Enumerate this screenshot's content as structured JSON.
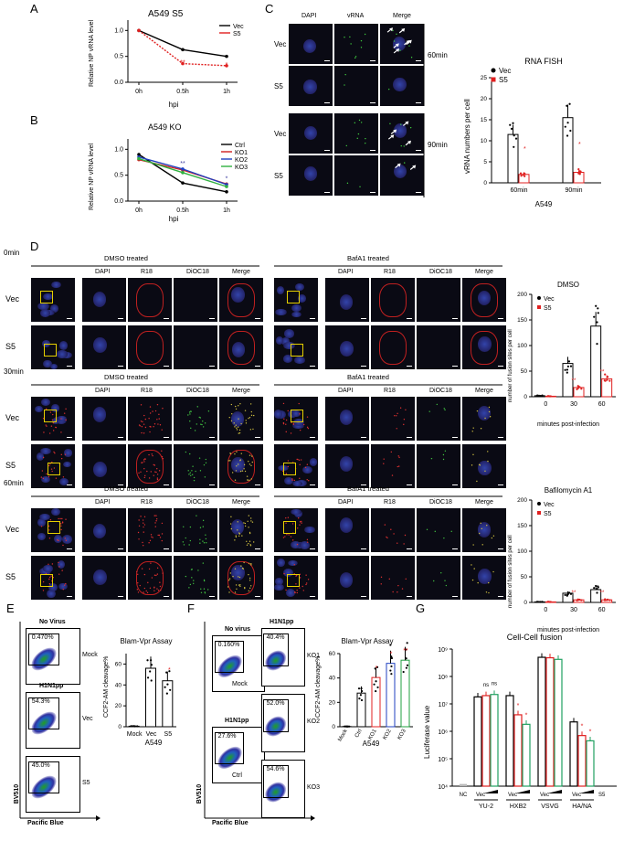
{
  "panels": {
    "A": "A",
    "B": "B",
    "C": "C",
    "D": "D",
    "E": "E",
    "F": "F",
    "G": "G"
  },
  "panelA": {
    "title": "A549 S5",
    "ylabel": "Relative NP vRNA level",
    "xlabel": "hpi",
    "xticks": [
      "0h",
      "0.5h",
      "1h"
    ],
    "yticks": [
      "0.0",
      "0.5",
      "1.0"
    ],
    "legend": [
      "Vec",
      "S5"
    ],
    "series": [
      {
        "name": "Vec",
        "values": [
          1.0,
          0.63,
          0.5
        ],
        "color": "#000000"
      },
      {
        "name": "S5",
        "values": [
          1.0,
          0.36,
          0.32
        ],
        "color": "#e02020"
      }
    ],
    "sig": [
      "**",
      "*"
    ]
  },
  "panelB": {
    "title": "A549 KO",
    "ylabel": "Relative NP vRNA level",
    "xlabel": "hpi",
    "xticks": [
      "0h",
      "0.5h",
      "1h"
    ],
    "yticks": [
      "0.0",
      "0.5",
      "1.0"
    ],
    "legend": [
      "Ctrl",
      "KO1",
      "KO2",
      "KO3"
    ],
    "series": [
      {
        "name": "Ctrl",
        "values": [
          0.9,
          0.35,
          0.18
        ],
        "color": "#000000"
      },
      {
        "name": "KO1",
        "values": [
          0.8,
          0.6,
          0.33
        ],
        "color": "#d02020"
      },
      {
        "name": "KO2",
        "values": [
          0.85,
          0.62,
          0.32
        ],
        "color": "#2040c0"
      },
      {
        "name": "KO3",
        "values": [
          0.82,
          0.55,
          0.28
        ],
        "color": "#30b040"
      }
    ],
    "sig": [
      "**",
      "*"
    ]
  },
  "panelC": {
    "cols": [
      "DAPI",
      "vRNA",
      "Merge"
    ],
    "rows": [
      "Vec",
      "S5",
      "Vec",
      "S5"
    ],
    "times": [
      "60min",
      "90min"
    ],
    "chart_title": "RNA FISH",
    "ylabel": "vRNA numbers per cell",
    "xlabel": "A549",
    "xticks": [
      "60min",
      "90min"
    ],
    "yticks": [
      "0",
      "5",
      "10",
      "15",
      "20",
      "25"
    ],
    "legend": [
      "Vec",
      "S5"
    ],
    "sig": [
      "*",
      "*"
    ]
  },
  "panelD": {
    "times": [
      "0min",
      "30min",
      "60min"
    ],
    "groups": [
      "DMSO treated",
      "BafA1 treated"
    ],
    "cols": [
      "DAPI",
      "R18",
      "DiOC18",
      "Merge"
    ],
    "rows": [
      "Vec",
      "S5"
    ],
    "chart1_title": "DMSO",
    "chart2_title": "Bafilomycin A1",
    "ylabel": "number of fusion sites per cell",
    "xlabel": "minutes post-infection",
    "xticks": [
      "0",
      "30",
      "60"
    ],
    "yticks1": [
      "0",
      "50",
      "100",
      "150",
      "200"
    ],
    "yticks2": [
      "0",
      "50",
      "100",
      "150",
      "200"
    ],
    "legend": [
      "Vec",
      "S5"
    ],
    "sig": [
      "**",
      "**"
    ]
  },
  "panelE": {
    "facs": [
      {
        "title": "No Virus",
        "pct": "0.470%",
        "side": "Mock"
      },
      {
        "title": "H1N1pp",
        "pct": "54.3%",
        "side": "Vec"
      },
      {
        "title": "",
        "pct": "45.0%",
        "side": "S5"
      }
    ],
    "yaxis": "BV510",
    "xaxis": "Pacific Blue",
    "chart_title": "Blam-Vpr Assay",
    "ylabel": "CCF2-AM cleavage%",
    "xlabel": "A549",
    "xticks": [
      "Mock",
      "Vec",
      "S5"
    ],
    "yticks": [
      "0",
      "20",
      "40",
      "60"
    ],
    "sig": "*"
  },
  "panelF": {
    "facs": [
      {
        "title": "No virus",
        "pct": "0.160%",
        "side": "Mock"
      },
      {
        "title": "H1N1pp",
        "pct": "27.6%",
        "side": "Ctrl"
      }
    ],
    "facs_right": [
      {
        "title": "H1N1pp",
        "pct": "40.4%",
        "side": "KO1"
      },
      {
        "title": "",
        "pct": "52.0%",
        "side": "KO2"
      },
      {
        "title": "",
        "pct": "54.6%",
        "side": "KO3"
      }
    ],
    "yaxis": "BV510",
    "xaxis": "Pacific Blue",
    "chart_title": "Blam-Vpr Assay",
    "ylabel": "CCF2-AM cleavage%",
    "xlabel": "A549",
    "xticks": [
      "Mock",
      "Ctrl",
      "KO1",
      "KO2",
      "KO3"
    ],
    "yticks": [
      "0",
      "20",
      "40",
      "60"
    ],
    "sig": [
      "*",
      "*",
      "**"
    ]
  },
  "panelG": {
    "chart_title": "Cell-Cell fusion",
    "ylabel": "Luciferase value",
    "yticks": [
      "10⁴",
      "10⁵",
      "10⁶",
      "10⁷",
      "10⁸",
      "10⁹"
    ],
    "groups": [
      "NC",
      "YU-2",
      "HXB2",
      "VSVG",
      "HA/NA"
    ],
    "vec": "Vec",
    "s5": "S5",
    "ns": "ns"
  },
  "chart_data": [
    {
      "type": "line",
      "title": "A549 S5",
      "categories": [
        "0h",
        "0.5h",
        "1h"
      ],
      "series": [
        {
          "name": "Vec",
          "values": [
            1.0,
            0.63,
            0.5
          ]
        },
        {
          "name": "S5",
          "values": [
            1.0,
            0.36,
            0.32
          ]
        }
      ],
      "xlabel": "hpi",
      "ylabel": "Relative NP vRNA level",
      "ylim": [
        0,
        1.2
      ]
    },
    {
      "type": "line",
      "title": "A549 KO",
      "categories": [
        "0h",
        "0.5h",
        "1h"
      ],
      "series": [
        {
          "name": "Ctrl",
          "values": [
            0.9,
            0.35,
            0.18
          ]
        },
        {
          "name": "KO1",
          "values": [
            0.8,
            0.6,
            0.33
          ]
        },
        {
          "name": "KO2",
          "values": [
            0.85,
            0.62,
            0.32
          ]
        },
        {
          "name": "KO3",
          "values": [
            0.82,
            0.55,
            0.28
          ]
        }
      ],
      "xlabel": "hpi",
      "ylabel": "Relative NP vRNA level",
      "ylim": [
        0,
        1.2
      ]
    },
    {
      "type": "bar",
      "title": "RNA FISH",
      "categories": [
        "60min",
        "90min"
      ],
      "series": [
        {
          "name": "Vec",
          "values": [
            11.5,
            15.5
          ]
        },
        {
          "name": "S5",
          "values": [
            2,
            2.5
          ]
        }
      ],
      "xlabel": "A549",
      "ylabel": "vRNA numbers per cell",
      "ylim": [
        0,
        25
      ]
    },
    {
      "type": "bar",
      "title": "DMSO",
      "categories": [
        "0",
        "30",
        "60"
      ],
      "series": [
        {
          "name": "Vec",
          "values": [
            2,
            65,
            138
          ]
        },
        {
          "name": "S5",
          "values": [
            1,
            18,
            35
          ]
        }
      ],
      "xlabel": "minutes post-infection",
      "ylabel": "number of fusion sites per cell",
      "ylim": [
        0,
        200
      ]
    },
    {
      "type": "bar",
      "title": "Bafilomycin A1",
      "categories": [
        "0",
        "30",
        "60"
      ],
      "series": [
        {
          "name": "Vec",
          "values": [
            1,
            18,
            25
          ]
        },
        {
          "name": "S5",
          "values": [
            1,
            5,
            5
          ]
        }
      ],
      "xlabel": "minutes post-infection",
      "ylabel": "number of fusion sites per cell",
      "ylim": [
        0,
        200
      ]
    },
    {
      "type": "bar",
      "title": "Blam-Vpr Assay",
      "categories": [
        "Mock",
        "Vec",
        "S5"
      ],
      "values": [
        0.5,
        56,
        44
      ],
      "xlabel": "A549",
      "ylabel": "CCF2-AM cleavage%",
      "ylim": [
        0,
        70
      ]
    },
    {
      "type": "bar",
      "title": "Blam-Vpr Assay",
      "categories": [
        "Mock",
        "Ctrl",
        "KO1",
        "KO2",
        "KO3"
      ],
      "values": [
        0.2,
        27.6,
        40.4,
        52,
        54.6
      ],
      "xlabel": "A549",
      "ylabel": "CCF2-AM cleavage%",
      "ylim": [
        0,
        60
      ]
    },
    {
      "type": "bar",
      "title": "Cell-Cell fusion",
      "categories": [
        "NC",
        "YU-2 Vec",
        "YU-2 S5-1",
        "YU-2 S5-2",
        "HXB2 Vec",
        "HXB2 S5-1",
        "HXB2 S5-2",
        "VSVG Vec",
        "VSVG S5-1",
        "VSVG S5-2",
        "HA/NA Vec",
        "HA/NA S5-1",
        "HA/NA S5-2"
      ],
      "values": [
        12000,
        18000000,
        20000000,
        22000000,
        20000000,
        4000000,
        1800000,
        500000000,
        480000000,
        420000000,
        2200000,
        700000,
        450000
      ],
      "ylabel": "Luciferase value",
      "ylim": [
        10000,
        1000000000
      ]
    }
  ]
}
